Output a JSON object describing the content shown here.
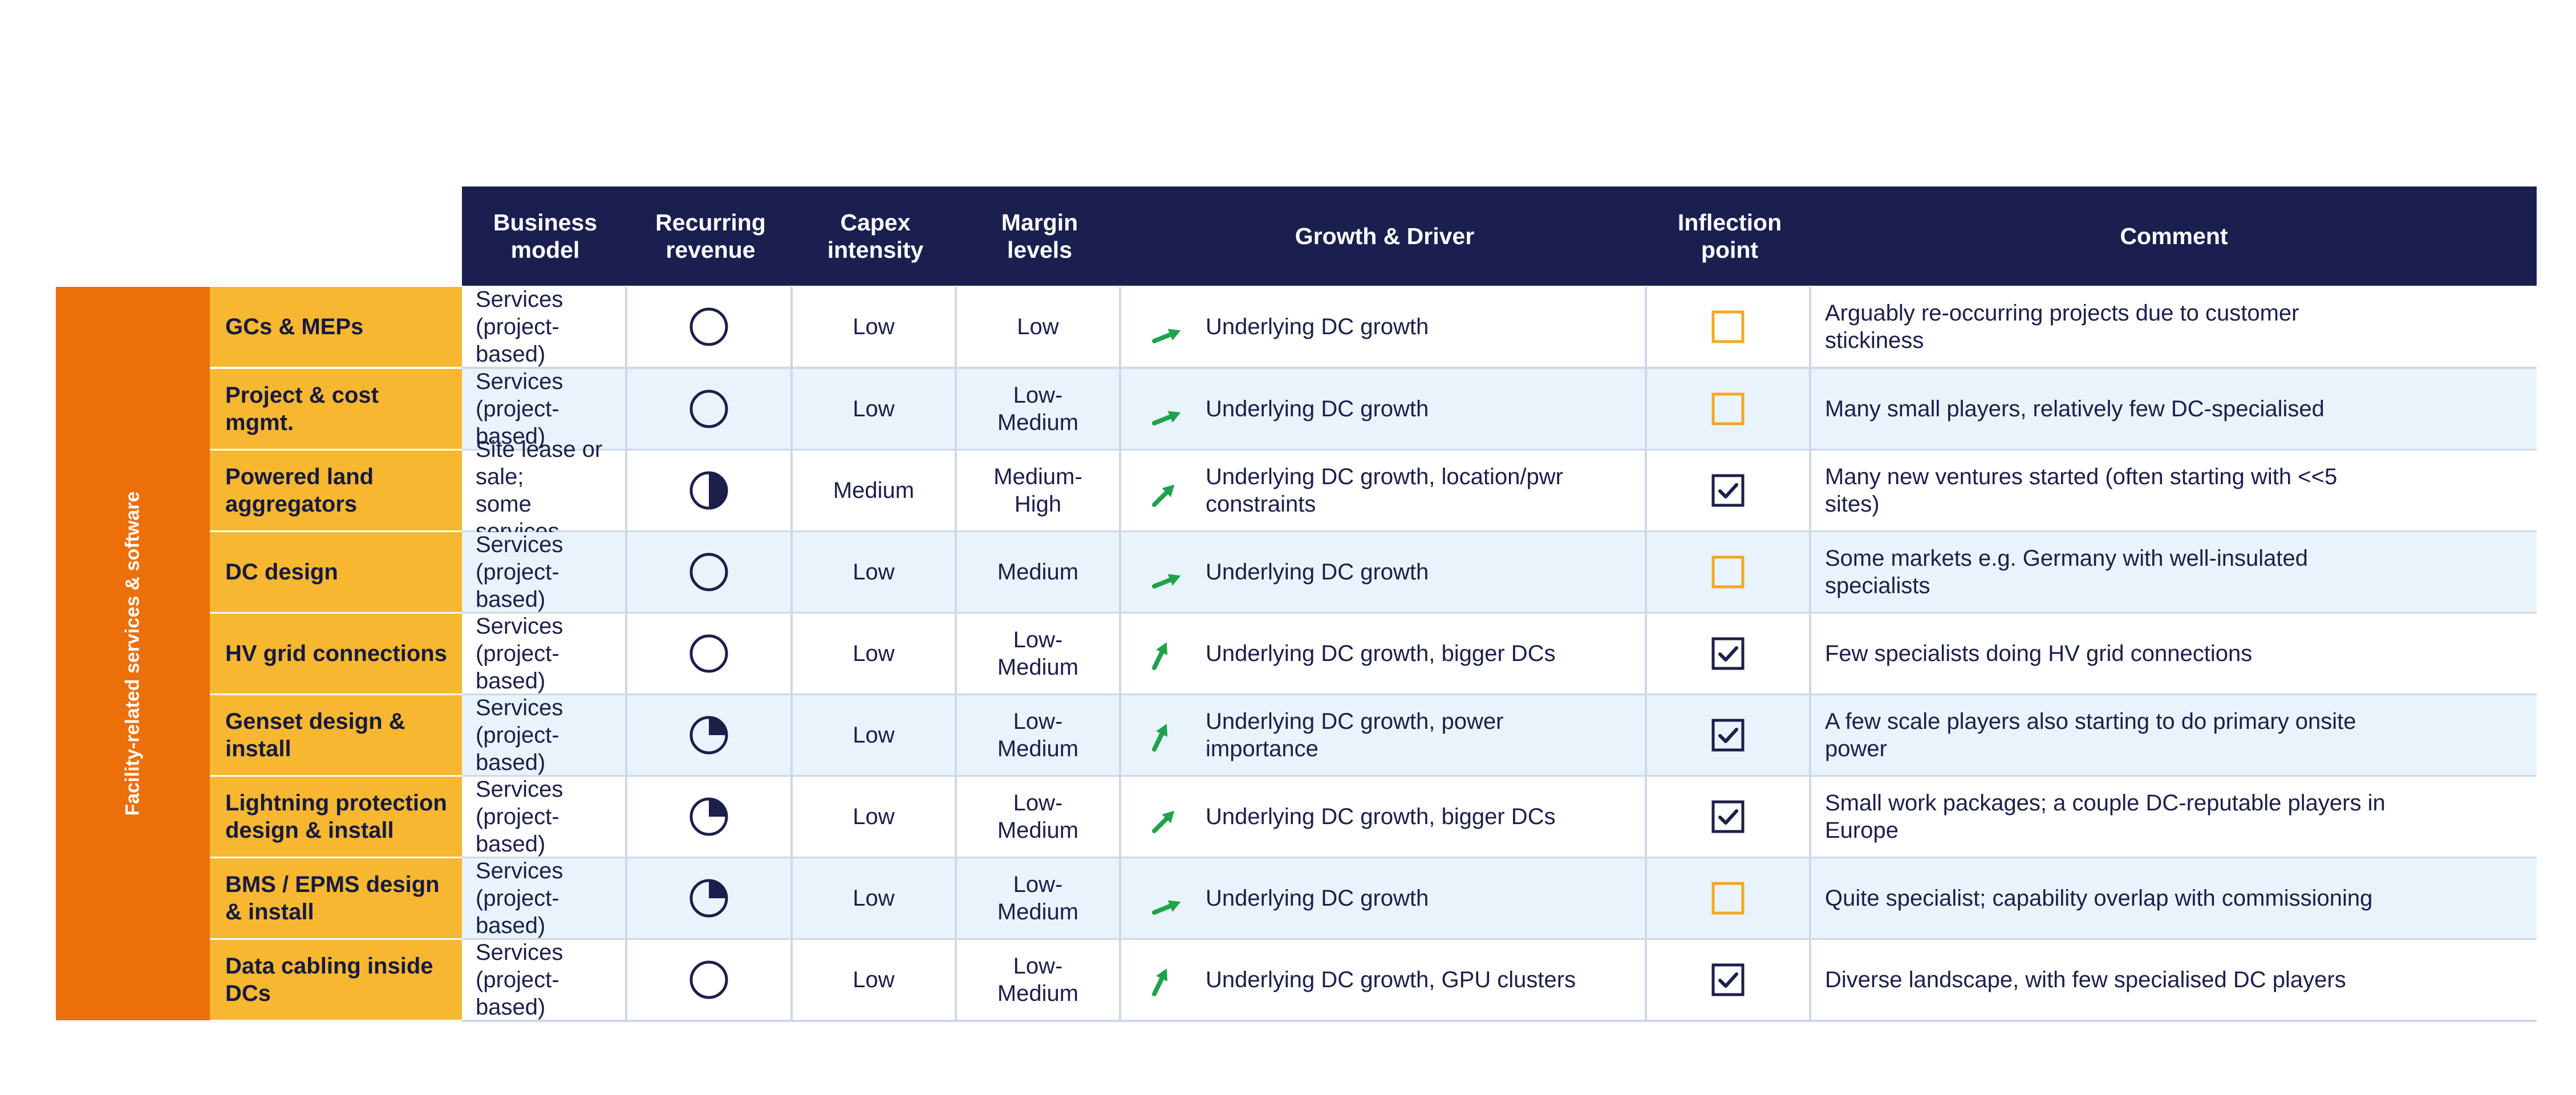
{
  "header": {
    "columns": [
      {
        "key": "business_model",
        "label": "Business model"
      },
      {
        "key": "recurring_revenue",
        "label": "Recurring\nrevenue"
      },
      {
        "key": "capex_intensity",
        "label": "Capex\nintensity"
      },
      {
        "key": "margin_levels",
        "label": "Margin\nlevels"
      },
      {
        "key": "growth_driver",
        "label": "Growth & Driver"
      },
      {
        "key": "inflection_point",
        "label": "Inflection\npoint"
      },
      {
        "key": "comment",
        "label": "Comment"
      }
    ]
  },
  "category_label": "Facility-related services & software",
  "colors": {
    "header_bg": "#1a1f4f",
    "category_bar": "#ec6f0a",
    "segment_bg": "#f7b731",
    "alt_row_bg": "#e9f3fb",
    "growth_arrow": "#1fa34a",
    "unchecked_box": "#f5a623",
    "checked_box": "#1b1f4a"
  },
  "legend_values": {
    "recurring_revenue": "fraction filled of harvey ball (0, 0.25, 0.5)",
    "growth_arrow": "steepness: moderate or strong"
  },
  "rows": [
    {
      "segment": "GCs & MEPs",
      "business_model": "Services (project-\nbased)",
      "recurring_revenue": 0,
      "capex": "Low",
      "margin": "Low",
      "growth_arrow": "moderate",
      "growth_text": "Underlying DC growth",
      "inflection": false,
      "comment": "Arguably re-occurring projects due to customer\nstickiness"
    },
    {
      "segment": "Project & cost\nmgmt.",
      "business_model": "Services (project-\nbased)",
      "recurring_revenue": 0,
      "capex": "Low",
      "margin": "Low-\nMedium",
      "growth_arrow": "moderate",
      "growth_text": "Underlying DC growth",
      "inflection": false,
      "comment": "Many small players, relatively few DC-specialised"
    },
    {
      "segment": "Powered land\naggregators",
      "business_model": "Site lease or sale;\nsome services",
      "recurring_revenue": 0.5,
      "capex": "Medium",
      "margin": "Medium-\nHigh",
      "growth_arrow": "strong",
      "growth_text": "Underlying DC growth, location/pwr\nconstraints",
      "inflection": true,
      "comment": "Many new ventures started (often starting with <<5\nsites)"
    },
    {
      "segment": "DC design",
      "business_model": "Services (project-\nbased)",
      "recurring_revenue": 0,
      "capex": "Low",
      "margin": "Medium",
      "growth_arrow": "moderate",
      "growth_text": "Underlying DC growth",
      "inflection": false,
      "comment": "Some markets e.g. Germany with well-insulated\nspecialists"
    },
    {
      "segment": "HV grid connections",
      "business_model": "Services (project-\nbased)",
      "recurring_revenue": 0,
      "capex": "Low",
      "margin": "Low-\nMedium",
      "growth_arrow": "steep",
      "growth_text": "Underlying DC growth, bigger DCs",
      "inflection": true,
      "comment": "Few specialists doing HV grid connections"
    },
    {
      "segment": "Genset design &\ninstall",
      "business_model": "Services (project-\nbased)",
      "recurring_revenue": 0.25,
      "capex": "Low",
      "margin": "Low-\nMedium",
      "growth_arrow": "steep",
      "growth_text": "Underlying DC growth, power\nimportance",
      "inflection": true,
      "comment": "A few scale players also starting to do primary onsite\npower"
    },
    {
      "segment": "Lightning protection\ndesign & install",
      "business_model": "Services (project-\nbased)",
      "recurring_revenue": 0.25,
      "capex": "Low",
      "margin": "Low-\nMedium",
      "growth_arrow": "strong",
      "growth_text": "Underlying DC growth, bigger DCs",
      "inflection": true,
      "comment": "Small work packages; a couple DC-reputable players in\nEurope"
    },
    {
      "segment": "BMS / EPMS design\n& install",
      "business_model": "Services (project-\nbased)",
      "recurring_revenue": 0.25,
      "capex": "Low",
      "margin": "Low-\nMedium",
      "growth_arrow": "moderate",
      "growth_text": "Underlying DC growth",
      "inflection": false,
      "comment": "Quite specialist; capability overlap with commissioning"
    },
    {
      "segment": "Data cabling inside\nDCs",
      "business_model": "Services (project-\nbased)",
      "recurring_revenue": 0,
      "capex": "Low",
      "margin": "Low-\nMedium",
      "growth_arrow": "steep",
      "growth_text": "Underlying DC growth, GPU clusters",
      "inflection": true,
      "comment": "Diverse landscape, with few specialised DC players"
    }
  ]
}
